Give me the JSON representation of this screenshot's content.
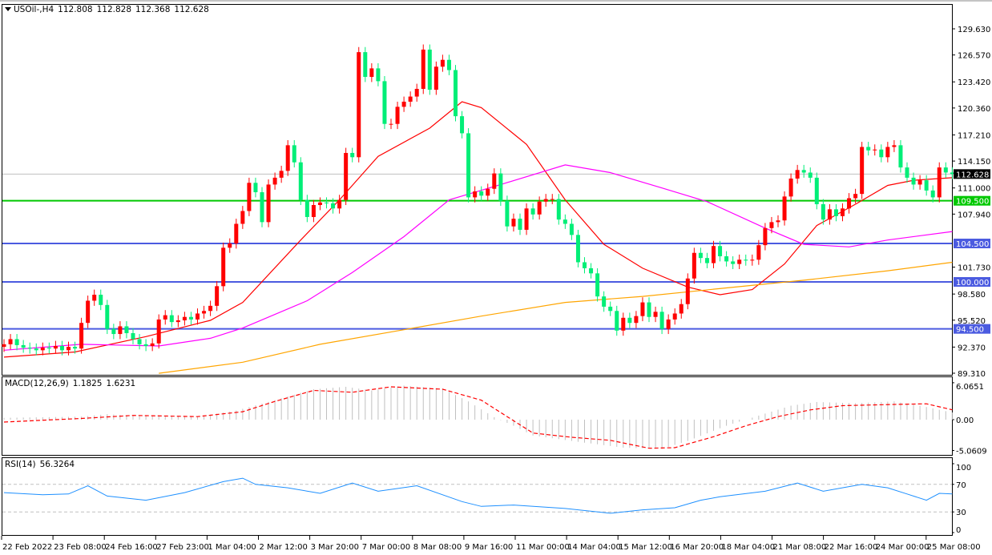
{
  "header": {
    "symbol": "USOil-,H4",
    "open": "112.808",
    "high": "112.828",
    "low": "112.368",
    "close": "112.628"
  },
  "macd_label": {
    "name": "MACD(12,26,9)",
    "main": "1.1825",
    "signal": "1.6231"
  },
  "rsi_label": {
    "name": "RSI(14)",
    "value": "56.3264"
  },
  "colors": {
    "bull": "#ff0000",
    "bear": "#00ee77",
    "ma_fast": "#ff0000",
    "ma_mid": "#ff00ff",
    "ma_slow": "#ffa500",
    "level_green": "#00c800",
    "level_blue": "#4b5be0",
    "macd_hist": "#c0c0c0",
    "macd_signal": "#ff0000",
    "rsi": "#1e90ff",
    "bid_line": "#c0c0c0"
  },
  "chart_data": [
    {
      "type": "candlestick",
      "price_axis_ticks": [
        "129.630",
        "126.570",
        "123.420",
        "120.360",
        "117.210",
        "114.150",
        "111.000",
        "107.940",
        "101.730",
        "98.580",
        "95.520",
        "92.370",
        "89.310"
      ],
      "ylim": [
        89.31,
        129.63
      ],
      "time_axis_ticks": [
        "22 Feb 2022",
        "23 Feb 08:00",
        "24 Feb 16:00",
        "27 Feb 23:00",
        "1 Mar 04:00",
        "2 Mar 12:00",
        "3 Mar 20:00",
        "7 Mar 00:00",
        "8 Mar 08:00",
        "9 Mar 16:00",
        "11 Mar 00:00",
        "14 Mar 04:00",
        "15 Mar 12:00",
        "16 Mar 20:00",
        "18 Mar 04:00",
        "21 Mar 08:00",
        "22 Mar 16:00",
        "24 Mar 00:00",
        "25 Mar 08:00"
      ],
      "closes": [
        92.7,
        93.3,
        92.6,
        92.3,
        92.2,
        92.0,
        92.3,
        92.2,
        92.5,
        92.0,
        92.4,
        92.2,
        95.2,
        97.8,
        98.5,
        97.3,
        94.5,
        93.9,
        94.8,
        94.0,
        93.3,
        92.7,
        92.5,
        92.8,
        95.6,
        96.1,
        95.3,
        95.5,
        95.9,
        95.6,
        96.3,
        96.6,
        97.2,
        99.5,
        104.0,
        104.5,
        106.8,
        108.3,
        111.6,
        110.5,
        107.0,
        111.4,
        112.2,
        113.0,
        116.0,
        114.0,
        109.6,
        107.6,
        109.0,
        109.3,
        109.2,
        108.6,
        109.6,
        115.1,
        114.6,
        126.9,
        124.0,
        125.0,
        123.5,
        118.5,
        118.5,
        120.5,
        121.1,
        121.7,
        122.6,
        127.2,
        122.5,
        125.2,
        126.0,
        124.8,
        119.4,
        117.4,
        109.9,
        110.6,
        110.1,
        110.9,
        112.7,
        109.5,
        106.5,
        107.4,
        106.1,
        108.6,
        107.9,
        109.4,
        109.7,
        109.7,
        107.3,
        106.8,
        105.5,
        102.3,
        101.6,
        101.0,
        98.3,
        97.1,
        96.6,
        94.3,
        95.8,
        95.2,
        96.0,
        97.6,
        95.9,
        96.5,
        94.5,
        95.6,
        96.3,
        97.4,
        100.4,
        103.4,
        102.8,
        102.2,
        104.2,
        103.0,
        102.4,
        102.1,
        102.6,
        102.5,
        102.6,
        104.3,
        106.3,
        107.0,
        107.2,
        110.0,
        112.1,
        113.1,
        112.8,
        112.2,
        109.1,
        107.3,
        108.5,
        107.7,
        108.6,
        109.8,
        110.3,
        115.8,
        115.4,
        115.5,
        114.6,
        115.8,
        116.0,
        113.4,
        112.2,
        111.4,
        111.9,
        110.7,
        109.9,
        113.4,
        112.808,
        112.628
      ],
      "moving_averages": [
        {
          "color_key": "ma_fast",
          "points": [
            [
              0,
              91.2
            ],
            [
              11,
              91.8
            ],
            [
              22,
              93.6
            ],
            [
              32,
              95.5
            ],
            [
              37,
              97.6
            ],
            [
              46,
              104.9
            ],
            [
              52,
              109.6
            ],
            [
              58,
              114.7
            ],
            [
              66,
              118.0
            ],
            [
              71,
              121.1
            ],
            [
              74,
              120.4
            ],
            [
              81,
              116.1
            ],
            [
              87,
              109.6
            ],
            [
              93,
              104.4
            ],
            [
              99,
              101.6
            ],
            [
              106,
              99.4
            ],
            [
              111,
              98.5
            ],
            [
              116,
              99.1
            ],
            [
              121,
              102.1
            ],
            [
              126,
              106.6
            ],
            [
              132,
              109.1
            ],
            [
              137,
              111.3
            ],
            [
              141,
              111.9
            ],
            [
              147,
              112.2
            ]
          ]
        },
        {
          "color_key": "ma_mid",
          "points": [
            [
              0,
              92.0
            ],
            [
              12,
              92.7
            ],
            [
              24,
              92.5
            ],
            [
              32,
              93.4
            ],
            [
              37,
              94.6
            ],
            [
              47,
              97.8
            ],
            [
              54,
              101.1
            ],
            [
              62,
              105.3
            ],
            [
              69,
              109.6
            ],
            [
              77,
              111.4
            ],
            [
              87,
              113.7
            ],
            [
              94,
              112.8
            ],
            [
              102,
              111.0
            ],
            [
              109,
              109.4
            ],
            [
              118,
              106.3
            ],
            [
              124,
              104.4
            ],
            [
              131,
              104.1
            ],
            [
              137,
              104.9
            ],
            [
              147,
              105.9
            ]
          ]
        },
        {
          "color_key": "ma_slow",
          "points": [
            [
              24,
              89.3
            ],
            [
              37,
              90.6
            ],
            [
              49,
              92.7
            ],
            [
              62,
              94.4
            ],
            [
              74,
              96.0
            ],
            [
              87,
              97.6
            ],
            [
              99,
              98.3
            ],
            [
              112,
              99.3
            ],
            [
              124,
              100.2
            ],
            [
              137,
              101.3
            ],
            [
              147,
              102.3
            ]
          ]
        }
      ],
      "levels": [
        {
          "value": "109.500",
          "color_key": "level_green"
        },
        {
          "value": "104.500",
          "color_key": "level_blue"
        },
        {
          "value": "100.000",
          "color_key": "level_blue"
        },
        {
          "value": "94.500",
          "color_key": "level_blue"
        }
      ],
      "current_price": "112.628"
    },
    {
      "type": "bar+line",
      "name": "MACD(12,26,9)",
      "axis_ticks": [
        "6.0651",
        "0.00",
        "-5.0609"
      ],
      "ylim": [
        -5.0609,
        6.0651
      ],
      "histogram_points": [
        [
          0,
          0.3
        ],
        [
          12,
          0.5
        ],
        [
          16,
          0.9
        ],
        [
          21,
          0.6
        ],
        [
          30,
          0.5
        ],
        [
          36,
          1.5
        ],
        [
          42,
          3.2
        ],
        [
          48,
          5.0
        ],
        [
          53,
          5.4
        ],
        [
          57,
          4.8
        ],
        [
          62,
          5.6
        ],
        [
          68,
          5.1
        ],
        [
          72,
          3.0
        ],
        [
          76,
          0.4
        ],
        [
          79,
          -1.0
        ],
        [
          82,
          -2.6
        ],
        [
          88,
          -3.5
        ],
        [
          96,
          -4.6
        ],
        [
          102,
          -4.8
        ],
        [
          106,
          -3.5
        ],
        [
          112,
          -1.0
        ],
        [
          118,
          1.0
        ],
        [
          122,
          2.3
        ],
        [
          126,
          2.9
        ],
        [
          132,
          2.7
        ],
        [
          138,
          3.0
        ],
        [
          142,
          2.3
        ],
        [
          147,
          1.18
        ]
      ],
      "signal_points": [
        [
          0,
          -0.4
        ],
        [
          12,
          0.2
        ],
        [
          20,
          0.7
        ],
        [
          30,
          0.5
        ],
        [
          37,
          1.3
        ],
        [
          42,
          3.0
        ],
        [
          48,
          4.8
        ],
        [
          54,
          4.5
        ],
        [
          60,
          5.4
        ],
        [
          68,
          5.0
        ],
        [
          74,
          3.2
        ],
        [
          78,
          0.5
        ],
        [
          82,
          -2.2
        ],
        [
          88,
          -2.9
        ],
        [
          94,
          -3.4
        ],
        [
          100,
          -4.7
        ],
        [
          104,
          -4.6
        ],
        [
          110,
          -2.8
        ],
        [
          115,
          -1.0
        ],
        [
          120,
          0.5
        ],
        [
          125,
          1.6
        ],
        [
          130,
          2.3
        ],
        [
          138,
          2.5
        ],
        [
          143,
          2.6
        ],
        [
          147,
          1.62
        ]
      ]
    },
    {
      "type": "line",
      "name": "RSI(14)",
      "axis_ticks": [
        "100",
        "70",
        "30",
        "0"
      ],
      "ylim": [
        0,
        100
      ],
      "levels": [
        70,
        30
      ],
      "points": [
        [
          0,
          58
        ],
        [
          6,
          55
        ],
        [
          10,
          56
        ],
        [
          13,
          68
        ],
        [
          16,
          53
        ],
        [
          22,
          47
        ],
        [
          28,
          58
        ],
        [
          34,
          74
        ],
        [
          37,
          79
        ],
        [
          39,
          70
        ],
        [
          44,
          65
        ],
        [
          49,
          57
        ],
        [
          54,
          72
        ],
        [
          58,
          60
        ],
        [
          64,
          68
        ],
        [
          71,
          45
        ],
        [
          74,
          38
        ],
        [
          79,
          40
        ],
        [
          87,
          35
        ],
        [
          94,
          28
        ],
        [
          99,
          33
        ],
        [
          104,
          36
        ],
        [
          108,
          47
        ],
        [
          111,
          52
        ],
        [
          118,
          60
        ],
        [
          123,
          72
        ],
        [
          127,
          60
        ],
        [
          133,
          70
        ],
        [
          137,
          65
        ],
        [
          140,
          56
        ],
        [
          143,
          47
        ],
        [
          145,
          57
        ],
        [
          147,
          56
        ]
      ]
    }
  ]
}
